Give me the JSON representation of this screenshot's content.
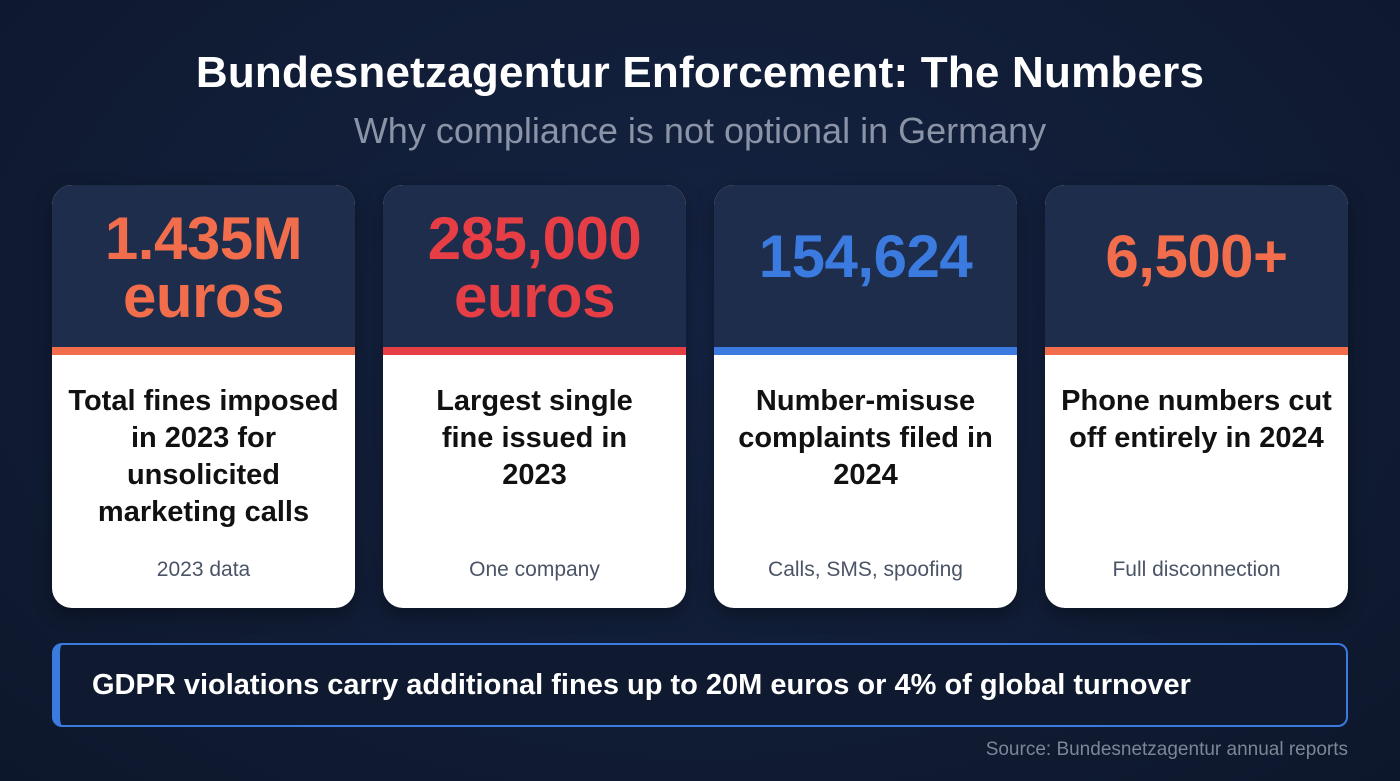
{
  "header": {
    "title": "Bundesnetzagentur Enforcement: The Numbers",
    "subtitle": "Why compliance is not optional in Germany"
  },
  "colors": {
    "background": "#111d36",
    "card_top": "#1e2d4b",
    "orange": "#f26d4b",
    "red": "#e63e44",
    "blue": "#3b7be0",
    "banner_border": "#3b7be0"
  },
  "cards": [
    {
      "stat_line1": "1.435M",
      "stat_line2": "euros",
      "accent": "orange",
      "description": "Total fines imposed in 2023 for unsolicited marketing calls",
      "note": "2023 data"
    },
    {
      "stat_line1": "285,000",
      "stat_line2": "euros",
      "accent": "red",
      "description": "Largest single fine issued in 2023",
      "note": "One company"
    },
    {
      "stat_line1": "154,624",
      "stat_line2": "",
      "accent": "blue",
      "description": "Number-misuse complaints filed in 2024",
      "note": "Calls, SMS, spoofing"
    },
    {
      "stat_line1": "6,500+",
      "stat_line2": "",
      "accent": "orange",
      "description": "Phone numbers cut off entirely in 2024",
      "note": "Full disconnection"
    }
  ],
  "banner": {
    "text": "GDPR violations carry additional fines up to 20M euros or 4% of global turnover"
  },
  "footer": {
    "source": "Source: Bundesnetzagentur annual reports"
  }
}
